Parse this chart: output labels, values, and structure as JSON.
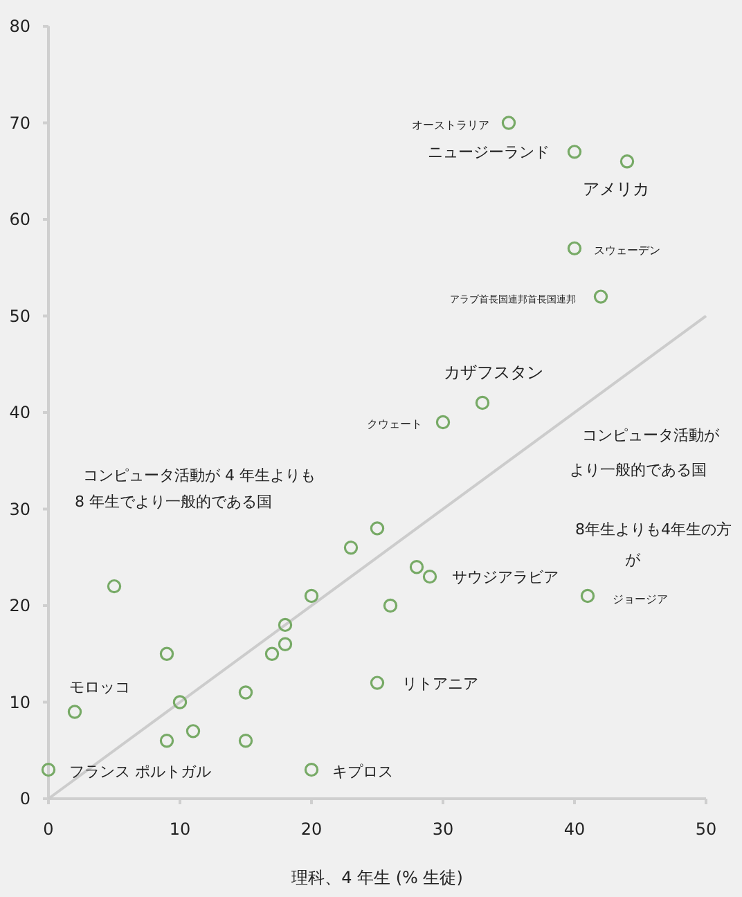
{
  "chart_data": {
    "type": "scatter",
    "xlabel": "理科、4 年生 (% 生徒)",
    "xlim": [
      0,
      50
    ],
    "xticks": [
      0,
      10,
      20,
      30,
      40,
      50
    ],
    "ylim": [
      0,
      80
    ],
    "yticks": [
      0,
      10,
      20,
      30,
      40,
      50,
      60,
      70,
      80
    ],
    "grid": false,
    "series": [
      {
        "marker": "circle",
        "color": "#77aa66",
        "x": [
          35,
          40,
          44,
          40,
          42,
          33,
          30,
          41,
          25,
          23,
          28,
          29,
          26,
          20,
          5,
          18,
          18,
          17,
          9,
          15,
          10,
          25,
          2,
          11,
          9,
          15,
          20,
          0
        ],
        "values": [
          70,
          67,
          66,
          57,
          52,
          41,
          39,
          21,
          28,
          26,
          24,
          23,
          20,
          21,
          22,
          18,
          16,
          15,
          15,
          11,
          10,
          12,
          9,
          7,
          6,
          6,
          3,
          3
        ]
      },
      {
        "type": "line",
        "color": "#cccccc",
        "x": [
          0,
          50
        ],
        "values": [
          0,
          50
        ]
      }
    ],
    "annotations": [
      {
        "text": "オーストラリア",
        "x": 35,
        "y": 70
      },
      {
        "text": "ニュージーランド",
        "x": 40,
        "y": 67
      },
      {
        "text": "アメリカ",
        "x": 44,
        "y": 66
      },
      {
        "text": "スウェーデン",
        "x": 40,
        "y": 57
      },
      {
        "text": "アラブ首長国連邦首長国連邦",
        "x": 42,
        "y": 52
      },
      {
        "text": "カザフスタン",
        "x": 33,
        "y": 41
      },
      {
        "text": "クウェート",
        "x": 30,
        "y": 39
      },
      {
        "text": "ジョージア",
        "x": 41,
        "y": 21
      },
      {
        "text": "サウジアラビア",
        "x": 29,
        "y": 23
      },
      {
        "text": "リトアニア",
        "x": 25,
        "y": 12
      },
      {
        "text": "モロッコ",
        "x": 2,
        "y": 9
      },
      {
        "text": "キプロス",
        "x": 20,
        "y": 3
      },
      {
        "text": "フランス ポルトガル",
        "x": 0,
        "y": 3
      },
      "コンピュータ活動が 4 年生よりも",
      "8 年生でより一般的である国",
      "コンピュータ活動が",
      "より一般的である国",
      "8年生よりも4年生の方",
      "が"
    ]
  }
}
